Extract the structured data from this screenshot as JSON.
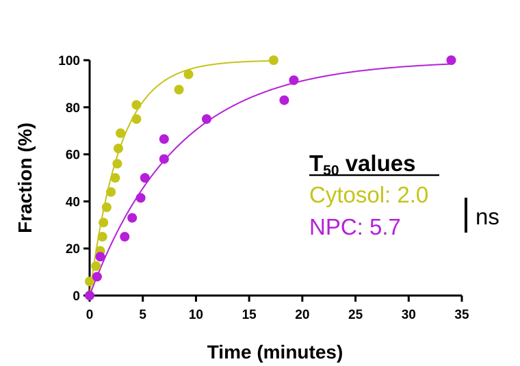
{
  "chart_data": {
    "type": "scatter",
    "xlabel": "Time (minutes)",
    "ylabel": "Fraction (%)",
    "xlim": [
      0,
      35
    ],
    "ylim": [
      0,
      100
    ],
    "x_ticks": [
      "0",
      "5",
      "10",
      "15",
      "20",
      "25",
      "30",
      "35"
    ],
    "y_ticks": [
      "0",
      "20",
      "40",
      "60",
      "80",
      "100"
    ],
    "grid": false,
    "series": [
      {
        "name": "Cytosol",
        "color": "#c4c41a",
        "points": [
          [
            0,
            6
          ],
          [
            0.6,
            12.5
          ],
          [
            1.0,
            19
          ],
          [
            1.2,
            25
          ],
          [
            1.3,
            31
          ],
          [
            1.6,
            37.5
          ],
          [
            2.0,
            44
          ],
          [
            2.4,
            50
          ],
          [
            2.6,
            56
          ],
          [
            2.7,
            62.5
          ],
          [
            2.9,
            69
          ],
          [
            4.4,
            75
          ],
          [
            4.4,
            81
          ],
          [
            8.4,
            87.5
          ],
          [
            9.3,
            94
          ],
          [
            17.3,
            100
          ]
        ],
        "fit": true
      },
      {
        "name": "NPC",
        "color": "#b51fd9",
        "points": [
          [
            0,
            0
          ],
          [
            0.7,
            8
          ],
          [
            1.0,
            16.5
          ],
          [
            3.3,
            25
          ],
          [
            4.0,
            33
          ],
          [
            4.8,
            41.5
          ],
          [
            5.2,
            50
          ],
          [
            7.0,
            58
          ],
          [
            7.0,
            66.5
          ],
          [
            11.0,
            75
          ],
          [
            18.3,
            83
          ],
          [
            19.2,
            91.5
          ],
          [
            34.0,
            100
          ]
        ],
        "fit": true
      }
    ],
    "annotations": {
      "title_main": "T",
      "title_sub": "50",
      "title_rest": " values",
      "cytosol_label": "Cytosol: 2.0",
      "npc_label": "NPC: 5.7",
      "significance": "ns"
    }
  }
}
